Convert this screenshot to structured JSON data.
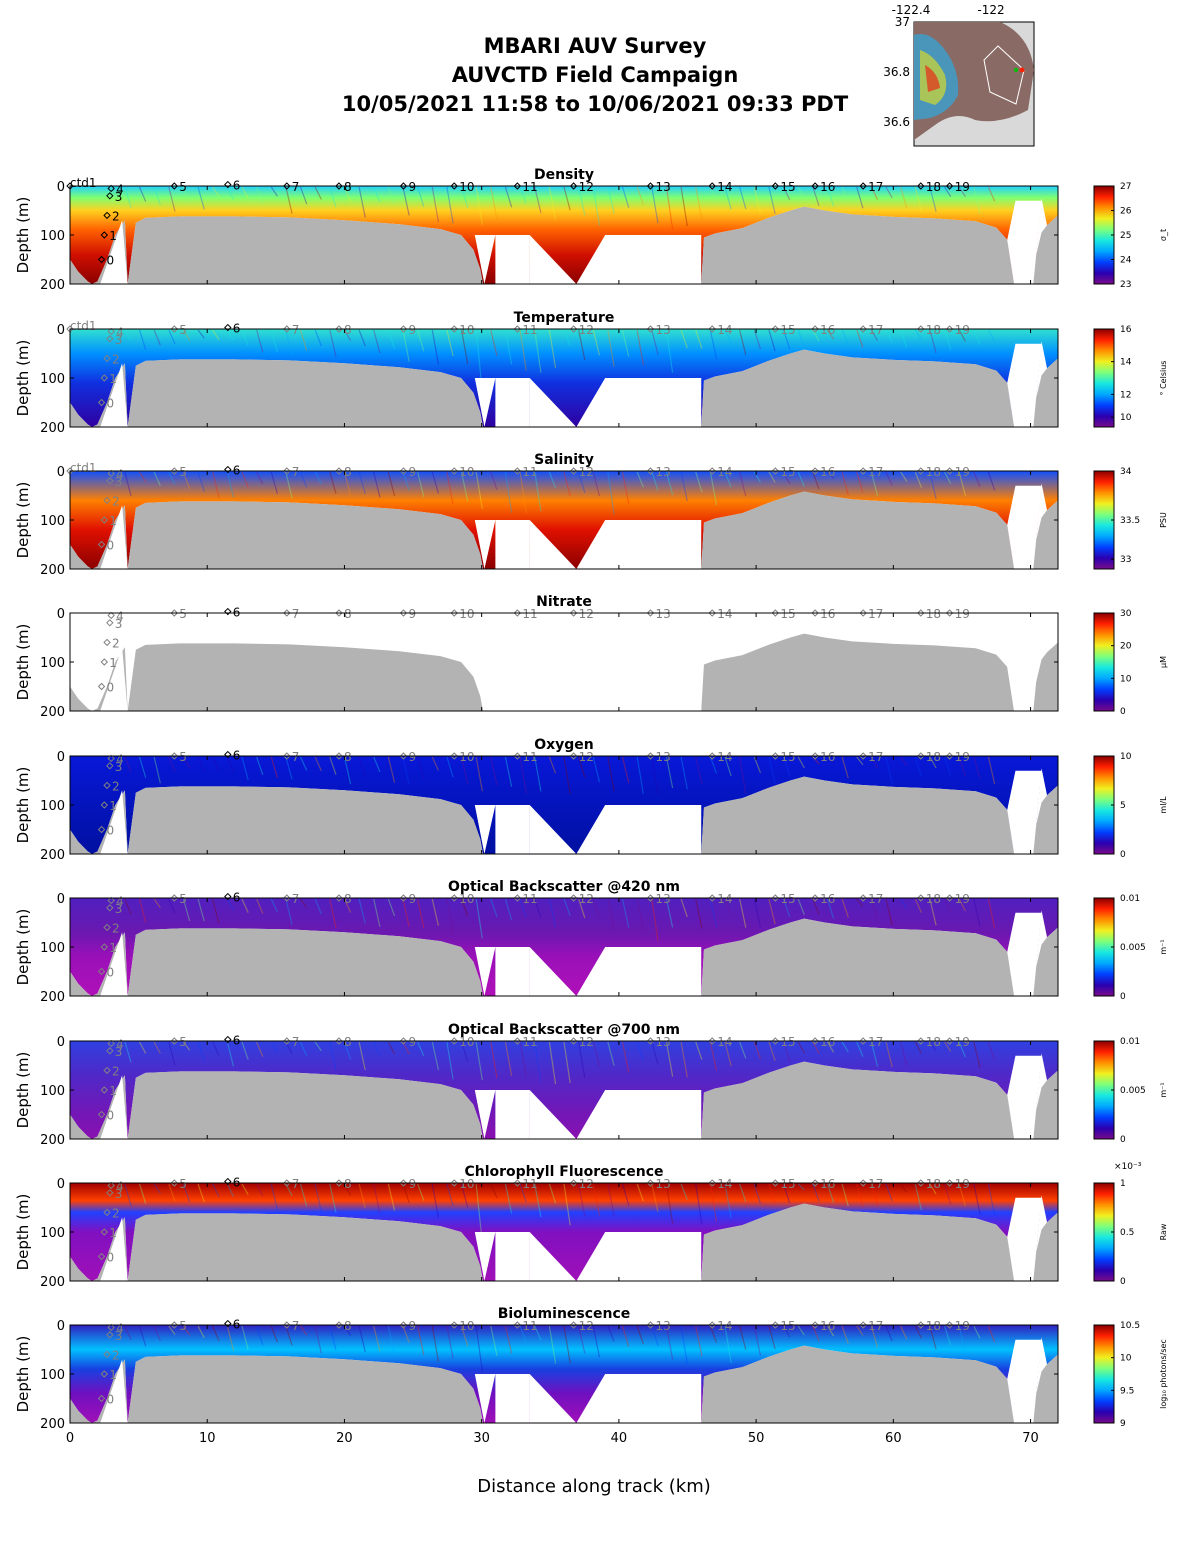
{
  "header": {
    "line1": "MBARI AUV Survey",
    "line2": "AUVCTD Field Campaign",
    "line3": "10/05/2021 11:58  to 10/06/2021 09:33 PDT"
  },
  "inset_map": {
    "x_ticks": [
      "-122.4",
      "-122"
    ],
    "y_ticks": [
      "37",
      "36.8",
      "36.6"
    ]
  },
  "chart_data": {
    "type": "heatmap",
    "xlabel": "Distance along track (km)",
    "ylabel": "Depth (m)",
    "xlim": [
      0,
      72
    ],
    "ylim": [
      200,
      0
    ],
    "x_ticks": [
      0,
      10,
      20,
      30,
      40,
      50,
      60,
      70
    ],
    "y_ticks": [
      0,
      100,
      200
    ],
    "colormap": "jet",
    "stations": [
      {
        "label": "ctd1",
        "x": 0.0,
        "depth": 0
      },
      {
        "label": "4",
        "x": 3.0,
        "depth": 5
      },
      {
        "label": "3",
        "x": 2.9,
        "depth": 20
      },
      {
        "label": "2",
        "x": 2.7,
        "depth": 60
      },
      {
        "label": "1",
        "x": 2.5,
        "depth": 100
      },
      {
        "label": "0",
        "x": 2.3,
        "depth": 150
      },
      {
        "label": "5",
        "x": 7.6,
        "depth": 0
      },
      {
        "label": "6",
        "x": 11.5,
        "depth": -3
      },
      {
        "label": "7",
        "x": 15.8,
        "depth": 0
      },
      {
        "label": "8",
        "x": 19.6,
        "depth": 0
      },
      {
        "label": "9",
        "x": 24.3,
        "depth": 0
      },
      {
        "label": "10",
        "x": 28.0,
        "depth": 0
      },
      {
        "label": "11",
        "x": 32.6,
        "depth": 0
      },
      {
        "label": "12",
        "x": 36.7,
        "depth": 0
      },
      {
        "label": "13",
        "x": 42.3,
        "depth": 0
      },
      {
        "label": "14",
        "x": 46.8,
        "depth": 0
      },
      {
        "label": "15",
        "x": 51.4,
        "depth": 0
      },
      {
        "label": "16",
        "x": 54.3,
        "depth": 0
      },
      {
        "label": "17",
        "x": 57.8,
        "depth": 0
      },
      {
        "label": "18",
        "x": 62.0,
        "depth": 0
      },
      {
        "label": "19",
        "x": 64.1,
        "depth": 0
      }
    ],
    "bathymetry": {
      "x": [
        0,
        0.6,
        1.3,
        1.6,
        2.0,
        2.7,
        3.3,
        4.0,
        4.2,
        4.8,
        5.5,
        8,
        12,
        16,
        20,
        24,
        27,
        28.5,
        29.4,
        29.9,
        30.1,
        31,
        33.5,
        36.9,
        38.5,
        40.5,
        44,
        46.0,
        46.2,
        47,
        49,
        51,
        52.5,
        53.5,
        55,
        57,
        60,
        63,
        66,
        67.5,
        68.3,
        68.8,
        69.5,
        70.2,
        70.8,
        71.2,
        72
      ],
      "depth": [
        150,
        175,
        195,
        200,
        195,
        150,
        100,
        70,
        200,
        75,
        65,
        62,
        62,
        64,
        70,
        78,
        88,
        100,
        130,
        170,
        200,
        200,
        200,
        200,
        200,
        200,
        200,
        200,
        105,
        97,
        86,
        64,
        50,
        42,
        50,
        58,
        63,
        66,
        72,
        85,
        110,
        200,
        200,
        165,
        95,
        80,
        60
      ]
    },
    "panels": [
      {
        "name": "Density",
        "unit": "σ_t",
        "cb_ticks": [
          "27",
          "26",
          "25",
          "24",
          "23"
        ]
      },
      {
        "name": "Temperature",
        "unit": "° Celsius",
        "cb_ticks": [
          "16",
          "14",
          "12",
          "10"
        ]
      },
      {
        "name": "Salinity",
        "unit": "PSU",
        "cb_ticks": [
          "34",
          "33.5",
          "33"
        ]
      },
      {
        "name": "Nitrate",
        "unit": "μM",
        "cb_ticks": [
          "30",
          "20",
          "10",
          "0"
        ]
      },
      {
        "name": "Oxygen",
        "unit": "ml/L",
        "cb_ticks": [
          "10",
          "5",
          "0"
        ]
      },
      {
        "name": "Optical Backscatter @420 nm",
        "unit": "m⁻¹",
        "cb_ticks": [
          "0.01",
          "0.005",
          "0"
        ]
      },
      {
        "name": "Optical Backscatter @700 nm",
        "unit": "m⁻¹",
        "cb_ticks": [
          "0.01",
          "0.005",
          "0"
        ]
      },
      {
        "name": "Chlorophyll Fluorescence",
        "unit": "Raw",
        "cb_exponent": "×10⁻³",
        "cb_ticks": [
          "1",
          "0.5",
          "0"
        ]
      },
      {
        "name": "Bioluminescence",
        "unit": "log₁₀ photons/sec",
        "cb_ticks": [
          "10.5",
          "10",
          "9.5",
          "9"
        ]
      }
    ]
  },
  "palette": {
    "bathymetry": "#b3b3b3",
    "jet": [
      "#7a0b8a",
      "#2a00b0",
      "#0040ff",
      "#00a8ff",
      "#18e8e0",
      "#7cff7c",
      "#f0f020",
      "#ff9000",
      "#ff2000",
      "#8a0000"
    ]
  }
}
